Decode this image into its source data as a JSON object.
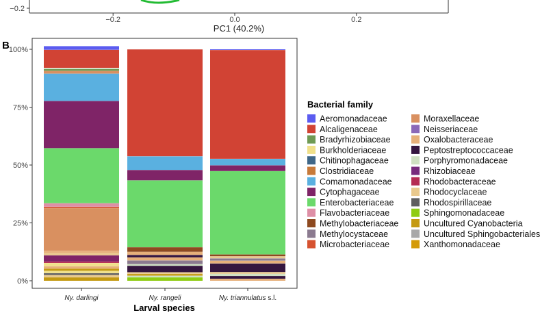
{
  "top_panel": {
    "y_tick": "−0.2",
    "x_ticks": [
      {
        "value": -0.2,
        "label": "−0.2"
      },
      {
        "value": 0.0,
        "label": "0.0"
      },
      {
        "value": 0.2,
        "label": "0.2"
      }
    ],
    "xlabel": "PC1 (40.2%)"
  },
  "panel_label": "B",
  "chart_data": {
    "type": "stacked-bar",
    "categories": [
      "Ny. darlingi",
      "Ny. rangeli",
      "Ny. triannulatus s.l."
    ],
    "category_suffix": [
      "",
      "",
      " s.l."
    ],
    "category_italic": [
      "Ny. darlingi",
      "Ny. rangeli",
      "Ny. triannulatus"
    ],
    "xlabel": "Larval species",
    "ylabel": "",
    "ylim": [
      0,
      100
    ],
    "y_ticks": [
      {
        "value": 0,
        "label": "0%"
      },
      {
        "value": 25,
        "label": "25%"
      },
      {
        "value": 50,
        "label": "50%"
      },
      {
        "value": 75,
        "label": "75%"
      },
      {
        "value": 100,
        "label": "100%"
      }
    ],
    "legend_title": "Bacterial family",
    "legend_position": "right",
    "families": [
      {
        "name": "Aeromonadaceae",
        "color": "#5b5cf0"
      },
      {
        "name": "Alcaligenaceae",
        "color": "#d14334"
      },
      {
        "name": "Bradyrhizobiaceae",
        "color": "#6f9a54"
      },
      {
        "name": "Burkholderiaceae",
        "color": "#f0e08a"
      },
      {
        "name": "Chitinophagaceae",
        "color": "#3f6788"
      },
      {
        "name": "Clostridiaceae",
        "color": "#c77a3a"
      },
      {
        "name": "Comamonadaceae",
        "color": "#5ab0e0"
      },
      {
        "name": "Cytophagaceae",
        "color": "#7f2467"
      },
      {
        "name": "Enterobacteriaceae",
        "color": "#6bd96b"
      },
      {
        "name": "Flavobacteriaceae",
        "color": "#de8fa6"
      },
      {
        "name": "Methylobacteriaceae",
        "color": "#8e4a20"
      },
      {
        "name": "Methylocystaceae",
        "color": "#8b7a8f"
      },
      {
        "name": "Microbacteriaceae",
        "color": "#d65230"
      },
      {
        "name": "Moraxellaceae",
        "color": "#d99060"
      },
      {
        "name": "Neisseriaceae",
        "color": "#8b68b8"
      },
      {
        "name": "Oxalobacteraceae",
        "color": "#e6b07a"
      },
      {
        "name": "Peptostreptococcaceae",
        "color": "#35163f"
      },
      {
        "name": "Porphyromonadaceae",
        "color": "#cfe0c2"
      },
      {
        "name": "Rhizobiaceae",
        "color": "#772a7c"
      },
      {
        "name": "Rhodobacteraceae",
        "color": "#b52c53"
      },
      {
        "name": "Rhodocyclaceae",
        "color": "#e9c98d"
      },
      {
        "name": "Rhodospirillaceae",
        "color": "#5f5f5f"
      },
      {
        "name": "Sphingomonadaceae",
        "color": "#8fcc14"
      },
      {
        "name": "Uncultured Cyanobacteria",
        "color": "#c49a12"
      },
      {
        "name": "Uncultured Sphingobacteriales",
        "color": "#a8a8a8"
      },
      {
        "name": "Xanthomonadaceae",
        "color": "#d49a08"
      }
    ],
    "series": [
      {
        "category": "Ny. darlingi",
        "segments": [
          [
            "Uncultured Cyanobacteria",
            1.5
          ],
          [
            "Rhodocyclaceae",
            1.0
          ],
          [
            "Rhodospirillaceae",
            0.8
          ],
          [
            "Burkholderiaceae",
            1.0
          ],
          [
            "Uncultured Cyanobacteria",
            1.0
          ],
          [
            "Oxalobacteraceae",
            1.0
          ],
          [
            "Burkholderiaceae",
            1.4
          ],
          [
            "Rhodobacteraceae",
            0.6
          ],
          [
            "Cytophagaceae",
            2.7
          ],
          [
            "Rhodocyclaceae",
            1.0
          ],
          [
            "Oxalobacteraceae",
            1.0
          ],
          [
            "Moraxellaceae",
            18.4
          ],
          [
            "Microbacteriaceae",
            0.6
          ],
          [
            "Flavobacteriaceae",
            1.5
          ],
          [
            "Enterobacteriaceae",
            23.8
          ],
          [
            "Cytophagaceae",
            20.4
          ],
          [
            "Comamonadaceae",
            11.8
          ],
          [
            "Moraxellaceae",
            1.2
          ],
          [
            "Bradyrhizobiaceae",
            0.8
          ],
          [
            "Porphyromonadaceae",
            0.5
          ],
          [
            "Alcaligenaceae",
            7.8
          ],
          [
            "Aeromonadaceae",
            1.6
          ]
        ]
      },
      {
        "category": "Ny. rangeli",
        "segments": [
          [
            "Sphingomonadaceae",
            1.5
          ],
          [
            "Porphyromonadaceae",
            0.7
          ],
          [
            "Uncultured Cyanobacteria",
            0.8
          ],
          [
            "Rhodocyclaceae",
            0.7
          ],
          [
            "Peptostreptococcaceae",
            2.8
          ],
          [
            "Porphyromonadaceae",
            0.7
          ],
          [
            "Methylocystaceae",
            1.6
          ],
          [
            "Oxalobacteraceae",
            1.3
          ],
          [
            "Peptostreptococcaceae",
            1.1
          ],
          [
            "Oxalobacteraceae",
            1.3
          ],
          [
            "Methylobacteriaceae",
            2.0
          ],
          [
            "Enterobacteriaceae",
            28.9
          ],
          [
            "Cytophagaceae",
            4.5
          ],
          [
            "Comamonadaceae",
            5.9
          ],
          [
            "Alcaligenaceae",
            46.2
          ]
        ]
      },
      {
        "category": "Ny. triannulatus s.l.",
        "segments": [
          [
            "Oxalobacteraceae",
            0.9
          ],
          [
            "Peptostreptococcaceae",
            1.2
          ],
          [
            "Porphyromonadaceae",
            0.9
          ],
          [
            "Rhodocyclaceae",
            0.8
          ],
          [
            "Peptostreptococcaceae",
            3.7
          ],
          [
            "Oxalobacteraceae",
            1.2
          ],
          [
            "Methylocystaceae",
            1.0
          ],
          [
            "Rhodocyclaceae",
            0.9
          ],
          [
            "Methylobacteriaceae",
            0.8
          ],
          [
            "Enterobacteriaceae",
            36.0
          ],
          [
            "Cytophagaceae",
            2.5
          ],
          [
            "Comamonadaceae",
            2.8
          ],
          [
            "Alcaligenaceae",
            47.0
          ],
          [
            "Aeromonadaceae",
            0.3
          ]
        ]
      }
    ]
  }
}
